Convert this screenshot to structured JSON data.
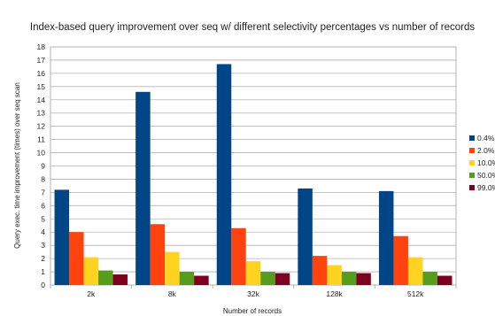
{
  "chart_data": {
    "type": "bar",
    "title": "Index-based query improvement over seq w/ different selectivity percentages vs number of records",
    "xlabel": "Number of records",
    "ylabel": "Query exec. time improvement (times) over seq scan",
    "categories": [
      "2k",
      "8k",
      "32k",
      "128k",
      "512k"
    ],
    "ylim": [
      0,
      18
    ],
    "yticks": [
      0,
      1,
      2,
      3,
      4,
      5,
      6,
      7,
      8,
      9,
      10,
      11,
      12,
      13,
      14,
      15,
      16,
      17,
      18
    ],
    "grid": true,
    "legend_position": "right",
    "series": [
      {
        "name": "0.4%",
        "color": "#004586",
        "values": [
          7.2,
          14.6,
          16.7,
          7.3,
          7.1
        ]
      },
      {
        "name": "2.0%",
        "color": "#ff420e",
        "values": [
          4.0,
          4.6,
          4.3,
          2.2,
          3.7
        ]
      },
      {
        "name": "10.0%",
        "color": "#ffd320",
        "values": [
          2.1,
          2.5,
          1.8,
          1.5,
          2.1
        ]
      },
      {
        "name": "50.0%",
        "color": "#579d1c",
        "values": [
          1.1,
          1.0,
          1.0,
          1.0,
          1.0
        ]
      },
      {
        "name": "99.0%",
        "color": "#7e0021",
        "values": [
          0.8,
          0.7,
          0.9,
          0.9,
          0.7
        ]
      }
    ]
  }
}
